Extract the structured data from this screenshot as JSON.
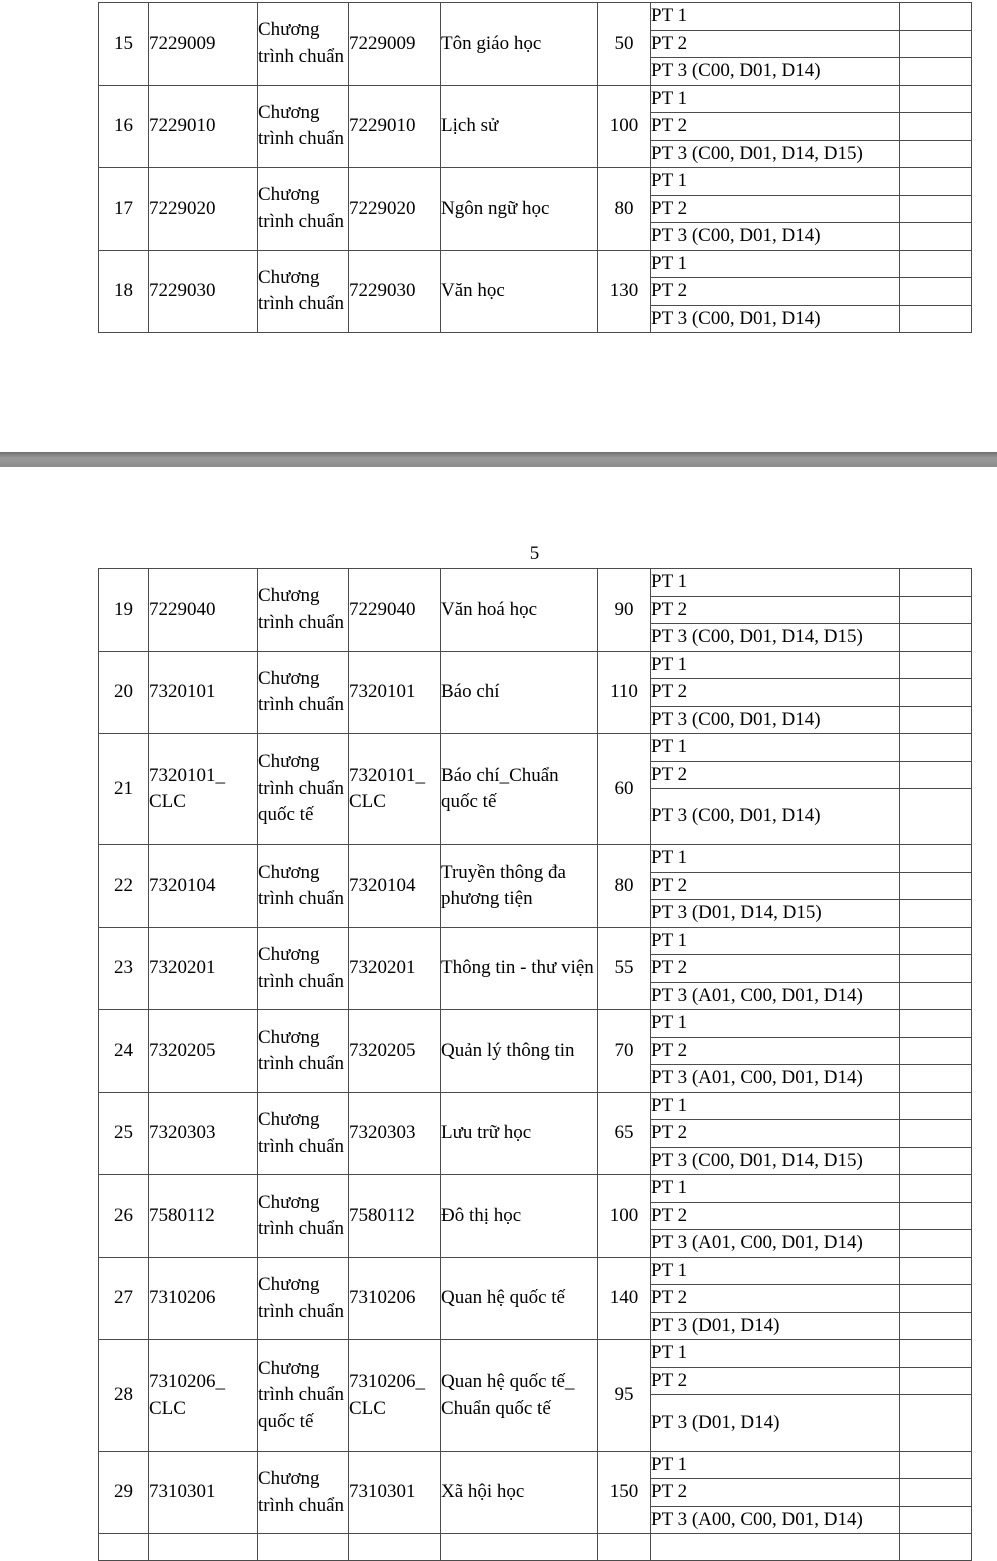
{
  "page_number": "5",
  "pt_labels": {
    "pt1": "PT 1",
    "pt2": "PT 2"
  },
  "table_top": {
    "rows": [
      {
        "no": "15",
        "code": "7229009",
        "program": "Chương trình chuẩn",
        "major_code": "7229009",
        "major": "Tôn giáo học",
        "quota": "50",
        "pt3": "PT 3 (C00, D01, D14)",
        "tall": false
      },
      {
        "no": "16",
        "code": "7229010",
        "program": "Chương trình chuẩn",
        "major_code": "7229010",
        "major": "Lịch sử",
        "quota": "100",
        "pt3": "PT 3 (C00, D01, D14, D15)",
        "tall": false
      },
      {
        "no": "17",
        "code": "7229020",
        "program": "Chương trình chuẩn",
        "major_code": "7229020",
        "major": "Ngôn ngữ học",
        "quota": "80",
        "pt3": "PT 3 (C00, D01, D14)",
        "tall": false
      },
      {
        "no": "18",
        "code": "7229030",
        "program": "Chương trình chuẩn",
        "major_code": "7229030",
        "major": "Văn học",
        "quota": "130",
        "pt3": "PT 3 (C00, D01, D14)",
        "tall": false
      }
    ],
    "has_partial_next_row": false
  },
  "table_page5": {
    "rows": [
      {
        "no": "19",
        "code": "7229040",
        "program": "Chương trình chuẩn",
        "major_code": "7229040",
        "major": "Văn hoá học",
        "quota": "90",
        "pt3": "PT 3 (C00, D01, D14, D15)",
        "tall": false
      },
      {
        "no": "20",
        "code": "7320101",
        "program": "Chương trình chuẩn",
        "major_code": "7320101",
        "major": "Báo chí",
        "quota": "110",
        "pt3": "PT 3 (C00, D01, D14)",
        "tall": false
      },
      {
        "no": "21",
        "code": "7320101_CLC",
        "program": "Chương trình chuẩn quốc tế",
        "major_code": "7320101_CLC",
        "major": "Báo chí_Chuẩn quốc tế",
        "quota": "60",
        "pt3": "PT 3 (C00, D01, D14)",
        "tall": true
      },
      {
        "no": "22",
        "code": "7320104",
        "program": "Chương trình chuẩn",
        "major_code": "7320104",
        "major": "Truyền thông đa phương tiện",
        "quota": "80",
        "pt3": "PT 3 (D01, D14, D15)",
        "tall": false
      },
      {
        "no": "23",
        "code": "7320201",
        "program": "Chương trình chuẩn",
        "major_code": "7320201",
        "major": "Thông tin - thư viện",
        "quota": "55",
        "pt3": "PT 3 (A01, C00, D01, D14)",
        "tall": false
      },
      {
        "no": "24",
        "code": "7320205",
        "program": "Chương trình chuẩn",
        "major_code": "7320205",
        "major": "Quản lý thông tin",
        "quota": "70",
        "pt3": "PT 3 (A01, C00, D01, D14)",
        "tall": false
      },
      {
        "no": "25",
        "code": "7320303",
        "program": "Chương trình chuẩn",
        "major_code": "7320303",
        "major": "Lưu trữ học",
        "quota": "65",
        "pt3": "PT 3 (C00, D01, D14, D15)",
        "tall": false
      },
      {
        "no": "26",
        "code": "7580112",
        "program": "Chương trình chuẩn",
        "major_code": "7580112",
        "major": "Đô thị học",
        "quota": "100",
        "pt3": "PT 3 (A01, C00, D01, D14)",
        "tall": false
      },
      {
        "no": "27",
        "code": "7310206",
        "program": "Chương trình chuẩn",
        "major_code": "7310206",
        "major": "Quan hệ quốc tế",
        "quota": "140",
        "pt3": "PT 3 (D01, D14)",
        "tall": false
      },
      {
        "no": "28",
        "code": "7310206_CLC",
        "program": "Chương trình chuẩn quốc tế",
        "major_code": "7310206_CLC",
        "major": "Quan hệ quốc tế_Chuẩn quốc tế",
        "quota": "95",
        "pt3": "PT 3 (D01, D14)",
        "tall": true
      },
      {
        "no": "29",
        "code": "7310301",
        "program": "Chương trình chuẩn",
        "major_code": "7310301",
        "major": "Xã hội học",
        "quota": "150",
        "pt3": "PT 3 (A00, C00, D01, D14)",
        "tall": false
      }
    ],
    "has_partial_next_row": true
  }
}
